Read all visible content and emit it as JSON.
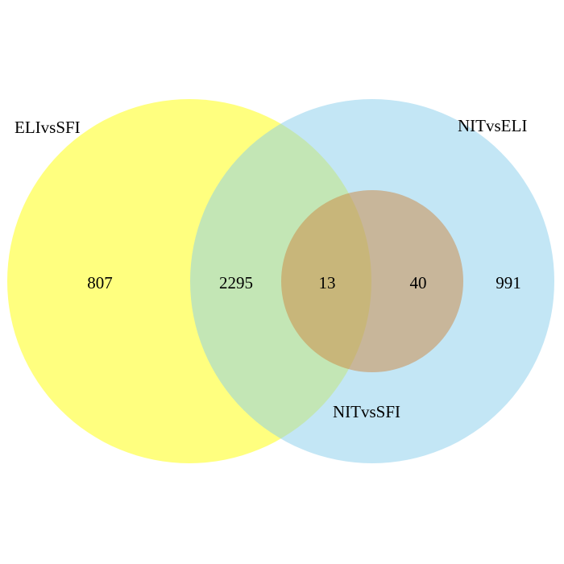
{
  "diagram": {
    "type": "venn",
    "sets": [
      {
        "id": "eli",
        "label": "ELIvsSFI",
        "color": "#FFFF00",
        "opacity": 0.5
      },
      {
        "id": "nit_eli",
        "label": "NITvsELI",
        "color": "#87CEEB",
        "opacity": 0.5
      },
      {
        "id": "nit_sfi",
        "label": "NITvsSFI",
        "color": "#CD853F",
        "opacity": 0.5
      }
    ],
    "regions": [
      {
        "sets": [
          "ELIvsSFI"
        ],
        "count": "807"
      },
      {
        "sets": [
          "ELIvsSFI",
          "NITvsELI"
        ],
        "count": "2295"
      },
      {
        "sets": [
          "ELIvsSFI",
          "NITvsELI",
          "NITvsSFI"
        ],
        "count": "13"
      },
      {
        "sets": [
          "NITvsELI",
          "NITvsSFI"
        ],
        "count": "40"
      },
      {
        "sets": [
          "NITvsELI"
        ],
        "count": "991"
      }
    ]
  }
}
